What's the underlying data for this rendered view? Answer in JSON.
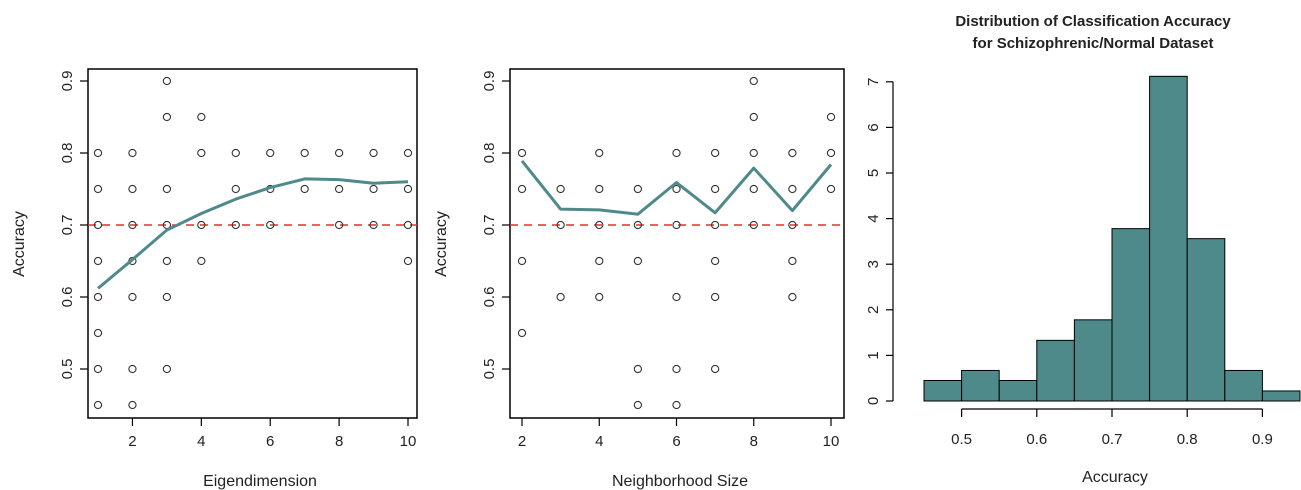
{
  "colors": {
    "line": "#4f8a8b",
    "bar_fill": "#4f8a8b",
    "reference_line": "#e0302f",
    "points": "#333333"
  },
  "chart_data": [
    {
      "type": "scatter",
      "xlabel": "Eigendimension",
      "ylabel": "Accuracy",
      "xlim": [
        1,
        10
      ],
      "ylim": [
        0.45,
        0.9
      ],
      "xticks": [
        2,
        4,
        6,
        8,
        10
      ],
      "yticks": [
        0.5,
        0.6,
        0.7,
        0.8,
        0.9
      ],
      "reference_line": 0.7,
      "points": [
        [
          1,
          0.8
        ],
        [
          1,
          0.75
        ],
        [
          1,
          0.7
        ],
        [
          1,
          0.65
        ],
        [
          1,
          0.6
        ],
        [
          1,
          0.55
        ],
        [
          1,
          0.5
        ],
        [
          1,
          0.45
        ],
        [
          2,
          0.8
        ],
        [
          2,
          0.75
        ],
        [
          2,
          0.7
        ],
        [
          2,
          0.65
        ],
        [
          2,
          0.6
        ],
        [
          2,
          0.5
        ],
        [
          2,
          0.45
        ],
        [
          3,
          0.9
        ],
        [
          3,
          0.85
        ],
        [
          3,
          0.75
        ],
        [
          3,
          0.7
        ],
        [
          3,
          0.65
        ],
        [
          3,
          0.6
        ],
        [
          3,
          0.5
        ],
        [
          4,
          0.85
        ],
        [
          4,
          0.8
        ],
        [
          4,
          0.7
        ],
        [
          4,
          0.65
        ],
        [
          5,
          0.8
        ],
        [
          5,
          0.75
        ],
        [
          5,
          0.7
        ],
        [
          6,
          0.8
        ],
        [
          6,
          0.75
        ],
        [
          6,
          0.7
        ],
        [
          7,
          0.8
        ],
        [
          7,
          0.75
        ],
        [
          8,
          0.8
        ],
        [
          8,
          0.75
        ],
        [
          8,
          0.7
        ],
        [
          9,
          0.8
        ],
        [
          9,
          0.75
        ],
        [
          9,
          0.7
        ],
        [
          10,
          0.8
        ],
        [
          10,
          0.75
        ],
        [
          10,
          0.7
        ],
        [
          10,
          0.65
        ]
      ],
      "mean_line": {
        "x": [
          1,
          2,
          3,
          4,
          5,
          6,
          7,
          8,
          9,
          10
        ],
        "y": [
          0.612,
          0.652,
          0.693,
          0.716,
          0.736,
          0.752,
          0.764,
          0.763,
          0.758,
          0.76
        ]
      }
    },
    {
      "type": "scatter",
      "xlabel": "Neighborhood Size",
      "ylabel": "Accuracy",
      "xlim": [
        2,
        10
      ],
      "ylim": [
        0.45,
        0.9
      ],
      "xticks": [
        2,
        4,
        6,
        8,
        10
      ],
      "yticks": [
        0.5,
        0.6,
        0.7,
        0.8,
        0.9
      ],
      "reference_line": 0.7,
      "points": [
        [
          2,
          0.8
        ],
        [
          2,
          0.75
        ],
        [
          2,
          0.65
        ],
        [
          2,
          0.55
        ],
        [
          3,
          0.75
        ],
        [
          3,
          0.7
        ],
        [
          3,
          0.6
        ],
        [
          4,
          0.8
        ],
        [
          4,
          0.75
        ],
        [
          4,
          0.7
        ],
        [
          4,
          0.65
        ],
        [
          4,
          0.6
        ],
        [
          5,
          0.75
        ],
        [
          5,
          0.7
        ],
        [
          5,
          0.65
        ],
        [
          5,
          0.5
        ],
        [
          5,
          0.45
        ],
        [
          6,
          0.8
        ],
        [
          6,
          0.75
        ],
        [
          6,
          0.7
        ],
        [
          6,
          0.6
        ],
        [
          6,
          0.5
        ],
        [
          6,
          0.45
        ],
        [
          7,
          0.8
        ],
        [
          7,
          0.75
        ],
        [
          7,
          0.7
        ],
        [
          7,
          0.65
        ],
        [
          7,
          0.6
        ],
        [
          7,
          0.5
        ],
        [
          8,
          0.9
        ],
        [
          8,
          0.85
        ],
        [
          8,
          0.8
        ],
        [
          8,
          0.75
        ],
        [
          8,
          0.7
        ],
        [
          9,
          0.8
        ],
        [
          9,
          0.75
        ],
        [
          9,
          0.7
        ],
        [
          9,
          0.65
        ],
        [
          9,
          0.6
        ],
        [
          10,
          0.85
        ],
        [
          10,
          0.8
        ],
        [
          10,
          0.75
        ]
      ],
      "mean_line": {
        "x": [
          2,
          3,
          4,
          5,
          6,
          7,
          8,
          9,
          10
        ],
        "y": [
          0.789,
          0.722,
          0.721,
          0.715,
          0.759,
          0.717,
          0.779,
          0.72,
          0.784
        ]
      }
    },
    {
      "type": "bar",
      "title": "Distribution of Classification Accuracy\nfor Schizophrenic/Normal Dataset",
      "xlabel": "Accuracy",
      "ylabel": "",
      "bin_edges": [
        0.45,
        0.5,
        0.55,
        0.6,
        0.65,
        0.7,
        0.75,
        0.8,
        0.85,
        0.9,
        0.95
      ],
      "values": [
        0.45,
        0.67,
        0.45,
        1.33,
        1.78,
        3.78,
        7.12,
        3.56,
        0.67,
        0.22
      ],
      "xticks": [
        0.5,
        0.6,
        0.7,
        0.8,
        0.9
      ],
      "yticks": [
        0,
        1,
        2,
        3,
        4,
        5,
        6,
        7
      ],
      "xlim": [
        0.45,
        0.95
      ],
      "ylim": [
        0,
        7.3
      ]
    }
  ]
}
